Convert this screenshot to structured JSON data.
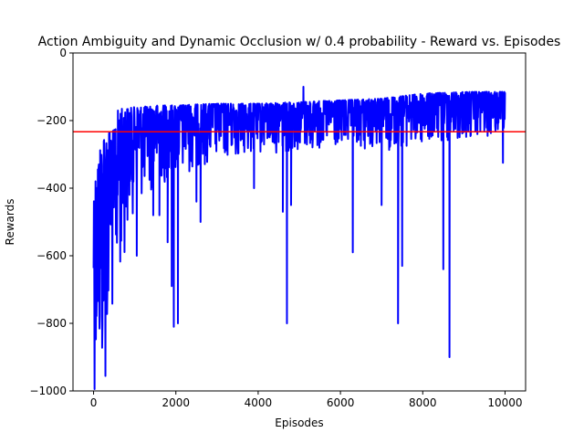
{
  "chart_data": {
    "type": "line",
    "title": "Action Ambiguity and Dynamic Occlusion w/ 0.4 probability - Reward vs. Episodes",
    "xlabel": "Episodes",
    "ylabel": "Rewards",
    "xlim": [
      -500,
      10500
    ],
    "ylim": [
      -1000,
      0
    ],
    "x_ticks": [
      0,
      2000,
      4000,
      6000,
      8000,
      10000
    ],
    "y_ticks": [
      0,
      -200,
      -400,
      -600,
      -800,
      -1000
    ],
    "grid": false,
    "legend": "none",
    "series": [
      {
        "color": "#0000ff",
        "episodes": 10000,
        "envelope": [
          {
            "x": 0,
            "min": -1000,
            "max": -400
          },
          {
            "x": 100,
            "min": -1000,
            "max": -330
          },
          {
            "x": 200,
            "min": -1000,
            "max": -250
          },
          {
            "x": 300,
            "min": -1000,
            "max": -240
          },
          {
            "x": 400,
            "min": -850,
            "max": -230
          },
          {
            "x": 500,
            "min": -780,
            "max": -230
          },
          {
            "x": 600,
            "min": -700,
            "max": -165
          },
          {
            "x": 800,
            "min": -560,
            "max": -165
          },
          {
            "x": 1000,
            "min": -450,
            "max": -160
          },
          {
            "x": 1300,
            "min": -420,
            "max": -158
          },
          {
            "x": 1600,
            "min": -400,
            "max": -155
          },
          {
            "x": 2000,
            "min": -380,
            "max": -155
          },
          {
            "x": 2500,
            "min": -340,
            "max": -152
          },
          {
            "x": 3000,
            "min": -320,
            "max": -150
          },
          {
            "x": 4000,
            "min": -300,
            "max": -150
          },
          {
            "x": 5000,
            "min": -290,
            "max": -145
          },
          {
            "x": 6000,
            "min": -290,
            "max": -140
          },
          {
            "x": 7000,
            "min": -290,
            "max": -135
          },
          {
            "x": 8000,
            "min": -280,
            "max": -120
          },
          {
            "x": 9000,
            "min": -260,
            "max": -115
          },
          {
            "x": 10000,
            "min": -250,
            "max": -115
          }
        ],
        "spikes": [
          {
            "x": 1050,
            "y": -600
          },
          {
            "x": 1450,
            "y": -480
          },
          {
            "x": 1600,
            "y": -480
          },
          {
            "x": 1800,
            "y": -560
          },
          {
            "x": 1900,
            "y": -690
          },
          {
            "x": 1950,
            "y": -810
          },
          {
            "x": 2050,
            "y": -800
          },
          {
            "x": 2500,
            "y": -440
          },
          {
            "x": 2600,
            "y": -500
          },
          {
            "x": 3900,
            "y": -400
          },
          {
            "x": 4600,
            "y": -470
          },
          {
            "x": 4700,
            "y": -800
          },
          {
            "x": 4800,
            "y": -450
          },
          {
            "x": 5100,
            "y": -100
          },
          {
            "x": 6300,
            "y": -590
          },
          {
            "x": 7000,
            "y": -450
          },
          {
            "x": 7400,
            "y": -800
          },
          {
            "x": 7500,
            "y": -630
          },
          {
            "x": 8500,
            "y": -640
          },
          {
            "x": 8650,
            "y": -900
          },
          {
            "x": 9950,
            "y": -325
          }
        ]
      }
    ],
    "reference_line": {
      "y": -233,
      "color": "#ff0000"
    }
  }
}
